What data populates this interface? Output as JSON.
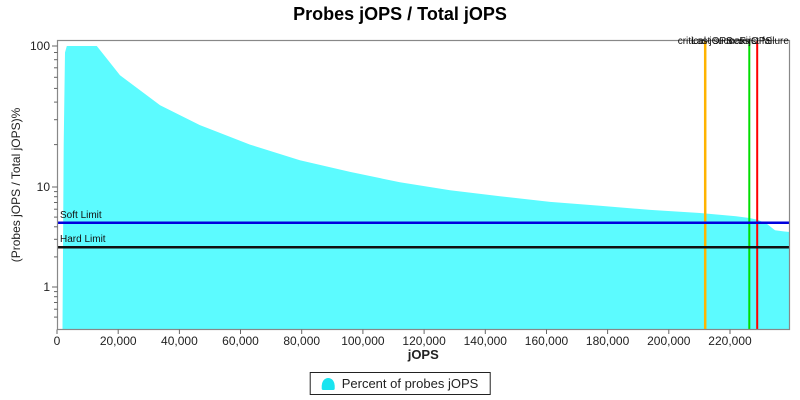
{
  "title": "Probes jOPS / Total jOPS",
  "axes": {
    "x_label": "jOPS",
    "y_label": "(Probes jOPS / Total jOPS)%",
    "x_ticks": [
      "0",
      "20,000",
      "40,000",
      "60,000",
      "80,000",
      "100,000",
      "120,000",
      "140,000",
      "160,000",
      "180,000",
      "200,000",
      "220,000"
    ],
    "x_tick_values": [
      0,
      20000,
      40000,
      60000,
      80000,
      100000,
      120000,
      140000,
      160000,
      180000,
      200000,
      220000
    ],
    "y_ticks": [
      "100",
      "10",
      "1"
    ],
    "y_tick_values": [
      100,
      10,
      1
    ]
  },
  "markers": [
    {
      "label": "critical-jOPS",
      "value": 211900,
      "color": "#FFB400"
    },
    {
      "label": "Last success",
      "value": 226300,
      "color": "#00DD00"
    },
    {
      "label": "max-jOPS",
      "value": 226300,
      "color": "#00DD00"
    },
    {
      "label": "First failure",
      "value": 228900,
      "color": "#FF0000"
    }
  ],
  "limits": {
    "soft": {
      "label": "Soft Limit",
      "value": 4.4,
      "color": "#0000DD"
    },
    "hard": {
      "label": "Hard Limit",
      "value": 2.5,
      "color": "#111111"
    }
  },
  "legend": {
    "label": "Percent of probes jOPS",
    "swatch_color": "#18E4F0"
  },
  "colors": {
    "area": "#5CFBFF",
    "plot_border": "#888888",
    "tick": "#666666"
  },
  "chart_data": {
    "type": "area",
    "title": "Probes jOPS / Total jOPS",
    "xlabel": "jOPS",
    "ylabel": "(Probes jOPS / Total jOPS)%",
    "x_range": [
      0,
      240000
    ],
    "y_scale": "log",
    "y_range": [
      0.4,
      110
    ],
    "grid": false,
    "legend_position": "bottom",
    "soft_limit_pct": 4.4,
    "hard_limit_pct": 2.5,
    "markers": {
      "critical_jOPS": 211900,
      "last_success": 226300,
      "max_jOPS": 226300,
      "first_failure": 228900
    },
    "series": [
      {
        "name": "Percent of probes jOPS",
        "color": "#5CFBFF",
        "points": [
          [
            1800,
            0.4
          ],
          [
            2200,
            20
          ],
          [
            2600,
            90
          ],
          [
            3200,
            100
          ],
          [
            13000,
            100
          ],
          [
            20600,
            62
          ],
          [
            33700,
            38
          ],
          [
            46700,
            27.5
          ],
          [
            63100,
            20
          ],
          [
            79400,
            15.5
          ],
          [
            95800,
            12.8
          ],
          [
            112100,
            10.8
          ],
          [
            128500,
            9.3
          ],
          [
            144800,
            8.1
          ],
          [
            161200,
            7.1
          ],
          [
            177500,
            6.5
          ],
          [
            193900,
            5.9
          ],
          [
            210200,
            5.5
          ],
          [
            222000,
            5.1
          ],
          [
            226300,
            4.9
          ],
          [
            229000,
            4.7
          ],
          [
            232000,
            4.3
          ],
          [
            234700,
            3.7
          ],
          [
            237500,
            3.6
          ],
          [
            239500,
            3.55
          ]
        ]
      }
    ]
  }
}
